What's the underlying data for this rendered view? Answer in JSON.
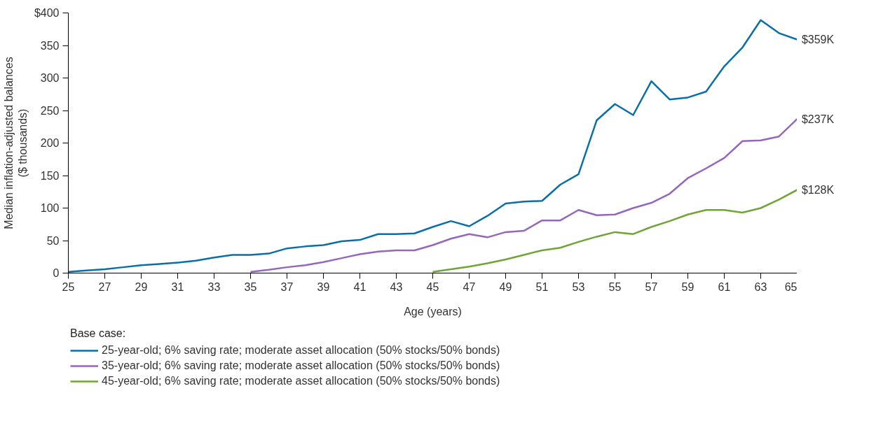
{
  "chart_data": {
    "type": "line",
    "xlabel": "Age (years)",
    "ylabel": "Median inflation-adjusted balances\n($ thousands)",
    "legend_title": "Base case:",
    "legend": "bottom",
    "grid": false,
    "line_style": "solid",
    "marker": "none",
    "x": [
      25,
      26,
      27,
      28,
      29,
      30,
      31,
      32,
      33,
      34,
      35,
      36,
      37,
      38,
      39,
      40,
      41,
      42,
      43,
      44,
      45,
      46,
      47,
      48,
      49,
      50,
      51,
      52,
      53,
      54,
      55,
      56,
      57,
      58,
      59,
      60,
      61,
      62,
      63,
      64,
      65
    ],
    "xlim": [
      25,
      65
    ],
    "xticks": [
      25,
      27,
      29,
      31,
      33,
      35,
      37,
      39,
      41,
      43,
      45,
      47,
      49,
      51,
      53,
      55,
      57,
      59,
      61,
      63,
      65
    ],
    "ylim": [
      0,
      400
    ],
    "yticks": [
      0,
      50,
      100,
      150,
      200,
      250,
      300,
      350,
      {
        "value": 400,
        "label": "$400"
      }
    ],
    "series": [
      {
        "name": "25-year-old; 6% saving rate; moderate asset allocation (50% stocks/50% bonds)",
        "color": "#0a6fa8",
        "values": [
          2,
          4,
          6,
          9,
          12,
          14,
          16,
          19,
          24,
          28,
          28,
          30,
          38,
          41,
          43,
          49,
          51,
          60,
          60,
          61,
          71,
          80,
          72,
          88,
          107,
          110,
          111,
          136,
          152,
          235,
          260,
          243,
          295,
          267,
          270,
          279,
          318,
          347,
          389,
          369,
          359
        ],
        "value_labels": [
          null,
          null,
          null,
          null,
          null,
          null,
          null,
          null,
          null,
          null,
          null,
          null,
          null,
          null,
          null,
          null,
          null,
          null,
          null,
          null,
          null,
          null,
          null,
          null,
          null,
          null,
          null,
          null,
          null,
          null,
          null,
          null,
          null,
          null,
          null,
          null,
          null,
          null,
          null,
          null,
          "$359K"
        ]
      },
      {
        "name": "35-year-old; 6% saving rate; moderate asset allocation (50% stocks/50% bonds)",
        "color": "#9467bd",
        "values": [
          null,
          null,
          null,
          null,
          null,
          null,
          null,
          null,
          null,
          null,
          2,
          5,
          9,
          12,
          17,
          23,
          29,
          33,
          35,
          35,
          43,
          53,
          60,
          55,
          63,
          65,
          81,
          81,
          97,
          89,
          90,
          100,
          108,
          122,
          146,
          161,
          177,
          203,
          204,
          210,
          237
        ],
        "value_labels": [
          null,
          null,
          null,
          null,
          null,
          null,
          null,
          null,
          null,
          null,
          null,
          null,
          null,
          null,
          null,
          null,
          null,
          null,
          null,
          null,
          null,
          null,
          null,
          null,
          null,
          null,
          null,
          null,
          null,
          null,
          null,
          null,
          null,
          null,
          null,
          null,
          null,
          null,
          null,
          null,
          "$237K"
        ]
      },
      {
        "name": "45-year-old; 6% saving rate; moderate asset allocation (50% stocks/50% bonds)",
        "color": "#6ea534",
        "values": [
          null,
          null,
          null,
          null,
          null,
          null,
          null,
          null,
          null,
          null,
          null,
          null,
          null,
          null,
          null,
          null,
          null,
          null,
          null,
          null,
          2,
          6,
          10,
          15,
          21,
          28,
          35,
          39,
          48,
          56,
          63,
          60,
          71,
          80,
          90,
          97,
          97,
          93,
          100,
          113,
          128
        ],
        "value_labels": [
          null,
          null,
          null,
          null,
          null,
          null,
          null,
          null,
          null,
          null,
          null,
          null,
          null,
          null,
          null,
          null,
          null,
          null,
          null,
          null,
          null,
          null,
          null,
          null,
          null,
          null,
          null,
          null,
          null,
          null,
          null,
          null,
          null,
          null,
          null,
          null,
          null,
          null,
          null,
          null,
          "$128K"
        ]
      }
    ]
  }
}
